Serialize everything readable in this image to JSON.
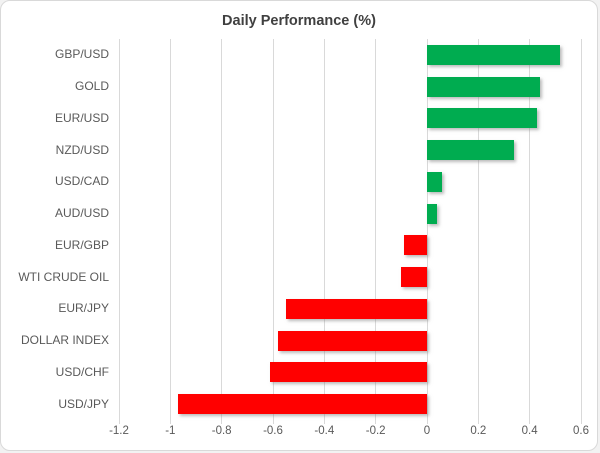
{
  "chart_data": {
    "type": "bar",
    "orientation": "horizontal",
    "title": "Daily Performance (%)",
    "categories": [
      "GBP/USD",
      "GOLD",
      "EUR/USD",
      "NZD/USD",
      "USD/CAD",
      "AUD/USD",
      "EUR/GBP",
      "WTI CRUDE OIL",
      "EUR/JPY",
      "DOLLAR INDEX",
      "USD/CHF",
      "USD/JPY"
    ],
    "values": [
      0.52,
      0.44,
      0.43,
      0.34,
      0.06,
      0.04,
      -0.09,
      -0.1,
      -0.55,
      -0.58,
      -0.61,
      -0.97
    ],
    "xlim": [
      -1.2,
      0.6
    ],
    "xticks": [
      -1.2,
      -1,
      -0.8,
      -0.6,
      -0.4,
      -0.2,
      0,
      0.2,
      0.4,
      0.6
    ],
    "xtick_labels": [
      "-1.2",
      "-1",
      "-0.8",
      "-0.6",
      "-0.4",
      "-0.2",
      "0",
      "0.2",
      "0.4",
      "0.6"
    ],
    "grid": true,
    "legend": false,
    "xlabel": "",
    "ylabel": "",
    "colors": {
      "positive": "#00AC50",
      "negative": "#FF0000",
      "gridline": "#D9D9D9",
      "title_text": "#404040",
      "label_text": "#595959"
    }
  }
}
